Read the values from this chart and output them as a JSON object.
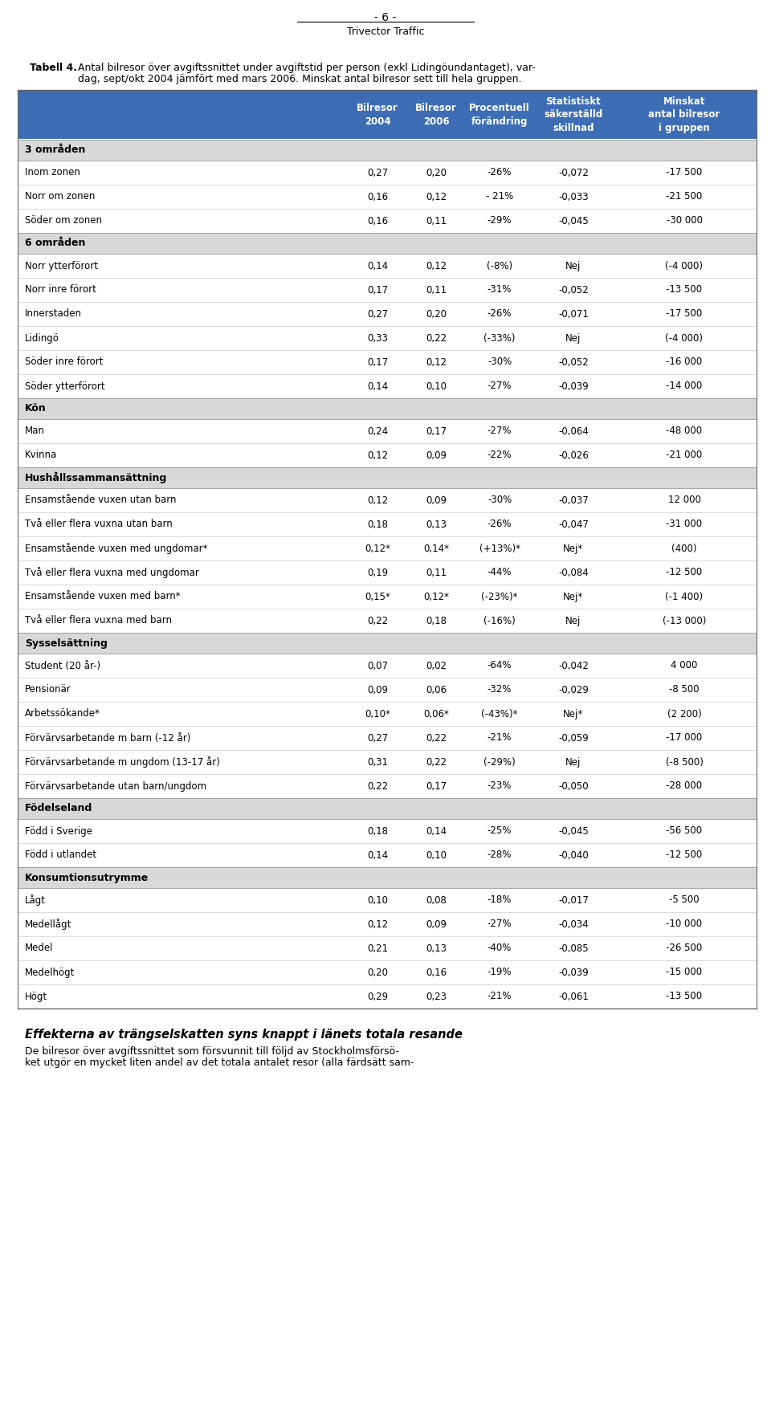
{
  "page_number": "- 6 -",
  "company": "Trivector Traffic",
  "caption_bold": "Tabell 4.",
  "caption_text1": "Antal bilresor över avgiftssnittet under avgiftstid per person (exkl Lidingöundantaget), var-",
  "caption_text2": "dag, sept/okt 2004 jämfört med mars 2006. Minskat antal bilresor sett till hela gruppen.",
  "header": [
    "Bilresor\n2004",
    "Bilresor\n2006",
    "Procentuell\nförändring",
    "Statistiskt\nsäkerställd\nskillnad",
    "Minskat\nantal bilresor\ni gruppen"
  ],
  "rows": [
    {
      "type": "section",
      "label": "3 områden",
      "values": [
        "",
        "",
        "",
        "",
        ""
      ]
    },
    {
      "type": "data",
      "label": "Inom zonen",
      "values": [
        "0,27",
        "0,20",
        "-26%",
        "-0,072",
        "-17 500"
      ]
    },
    {
      "type": "data",
      "label": "Norr om zonen",
      "values": [
        "0,16",
        "0,12",
        "- 21%",
        "-0,033",
        "-21 500"
      ]
    },
    {
      "type": "data",
      "label": "Söder om zonen",
      "values": [
        "0,16",
        "0,11",
        "-29%",
        "-0,045",
        "-30 000"
      ]
    },
    {
      "type": "section",
      "label": "6 områden",
      "values": [
        "",
        "",
        "",
        "",
        ""
      ]
    },
    {
      "type": "data",
      "label": "Norr ytterförort",
      "values": [
        "0,14",
        "0,12",
        "(-8%)",
        "Nej",
        "(-4 000)"
      ]
    },
    {
      "type": "data",
      "label": "Norr inre förort",
      "values": [
        "0,17",
        "0,11",
        "-31%",
        "-0,052",
        "-13 500"
      ]
    },
    {
      "type": "data",
      "label": "Innerstaden",
      "values": [
        "0,27",
        "0,20",
        "-26%",
        "-0,071",
        "-17 500"
      ]
    },
    {
      "type": "data",
      "label": "Lidingö",
      "values": [
        "0,33",
        "0,22",
        "(-33%)",
        "Nej",
        "(-4 000)"
      ]
    },
    {
      "type": "data",
      "label": "Söder inre förort",
      "values": [
        "0,17",
        "0,12",
        "-30%",
        "-0,052",
        "-16 000"
      ]
    },
    {
      "type": "data",
      "label": "Söder ytterförort",
      "values": [
        "0,14",
        "0,10",
        "-27%",
        "-0,039",
        "-14 000"
      ]
    },
    {
      "type": "section",
      "label": "Kön",
      "values": [
        "",
        "",
        "",
        "",
        ""
      ]
    },
    {
      "type": "data",
      "label": "Man",
      "values": [
        "0,24",
        "0,17",
        "-27%",
        "-0,064",
        "-48 000"
      ]
    },
    {
      "type": "data",
      "label": "Kvinna",
      "values": [
        "0,12",
        "0,09",
        "-22%",
        "-0,026",
        "-21 000"
      ]
    },
    {
      "type": "section",
      "label": "Hushållssammansättning",
      "values": [
        "",
        "",
        "",
        "",
        ""
      ]
    },
    {
      "type": "data",
      "label": "Ensamstående vuxen utan barn",
      "values": [
        "0,12",
        "0,09",
        "-30%",
        "-0,037",
        "12 000"
      ]
    },
    {
      "type": "data",
      "label": "Två eller flera vuxna utan barn",
      "values": [
        "0,18",
        "0,13",
        "-26%",
        "-0,047",
        "-31 000"
      ]
    },
    {
      "type": "data",
      "label": "Ensamstående vuxen med ungdomar*",
      "values": [
        "0,12*",
        "0,14*",
        "(+13%)*",
        "Nej*",
        "(400)"
      ]
    },
    {
      "type": "data",
      "label": "Två eller flera vuxna med ungdomar",
      "values": [
        "0,19",
        "0,11",
        "-44%",
        "-0,084",
        "-12 500"
      ]
    },
    {
      "type": "data",
      "label": "Ensamstående vuxen med barn*",
      "values": [
        "0,15*",
        "0,12*",
        "(-23%)*",
        "Nej*",
        "(-1 400)"
      ]
    },
    {
      "type": "data",
      "label": "Två eller flera vuxna med barn",
      "values": [
        "0,22",
        "0,18",
        "(-16%)",
        "Nej",
        "(-13 000)"
      ]
    },
    {
      "type": "section",
      "label": "Sysselsättning",
      "values": [
        "",
        "",
        "",
        "",
        ""
      ]
    },
    {
      "type": "data",
      "label": "Student (20 år-)",
      "values": [
        "0,07",
        "0,02",
        "-64%",
        "-0,042",
        "4 000"
      ]
    },
    {
      "type": "data",
      "label": "Pensionär",
      "values": [
        "0,09",
        "0,06",
        "-32%",
        "-0,029",
        "-8 500"
      ]
    },
    {
      "type": "data",
      "label": "Arbetssökande*",
      "values": [
        "0,10*",
        "0,06*",
        "(-43%)*",
        "Nej*",
        "(2 200)"
      ]
    },
    {
      "type": "data",
      "label": "Förvärvsarbetande m barn (-12 år)",
      "values": [
        "0,27",
        "0,22",
        "-21%",
        "-0,059",
        "-17 000"
      ]
    },
    {
      "type": "data",
      "label": "Förvärvsarbetande m ungdom (13-17 år)",
      "values": [
        "0,31",
        "0,22",
        "(-29%)",
        "Nej",
        "(-8 500)"
      ]
    },
    {
      "type": "data",
      "label": "Förvärvsarbetande utan barn/ungdom",
      "values": [
        "0,22",
        "0,17",
        "-23%",
        "-0,050",
        "-28 000"
      ]
    },
    {
      "type": "section",
      "label": "Födelseland",
      "values": [
        "",
        "",
        "",
        "",
        ""
      ]
    },
    {
      "type": "data",
      "label": "Född i Sverige",
      "values": [
        "0,18",
        "0,14",
        "-25%",
        "-0,045",
        "-56 500"
      ]
    },
    {
      "type": "data",
      "label": "Född i utlandet",
      "values": [
        "0,14",
        "0,10",
        "-28%",
        "-0,040",
        "-12 500"
      ]
    },
    {
      "type": "section",
      "label": "Konsumtionsutrymme",
      "values": [
        "",
        "",
        "",
        "",
        ""
      ]
    },
    {
      "type": "data",
      "label": "Lågt",
      "values": [
        "0,10",
        "0,08",
        "-18%",
        "-0,017",
        "-5 500"
      ]
    },
    {
      "type": "data",
      "label": "Medellågt",
      "values": [
        "0,12",
        "0,09",
        "-27%",
        "-0,034",
        "-10 000"
      ]
    },
    {
      "type": "data",
      "label": "Medel",
      "values": [
        "0,21",
        "0,13",
        "-40%",
        "-0,085",
        "-26 500"
      ]
    },
    {
      "type": "data",
      "label": "Medelhögt",
      "values": [
        "0,20",
        "0,16",
        "-19%",
        "-0,039",
        "-15 000"
      ]
    },
    {
      "type": "data",
      "label": "Högt",
      "values": [
        "0,29",
        "0,23",
        "-21%",
        "-0,061",
        "-13 500"
      ]
    }
  ],
  "footer_italic": "Effekterna av trängselskatten syns knappt i länets totala resande",
  "footer_text1": "De bilresor över avgiftssnittet som försvunnit till följd av Stockholmsförsö-",
  "footer_text2": "ket utgör en mycket liten andel av det totala antalet resor (alla färdsätt sam-",
  "header_bg": "#3d6db4",
  "section_bg": "#d8d8d8",
  "data_bg_white": "#ffffff",
  "header_text_color": "#ffffff",
  "text_color": "#000000",
  "border_color": "#999999",
  "thin_line_color": "#cccccc"
}
